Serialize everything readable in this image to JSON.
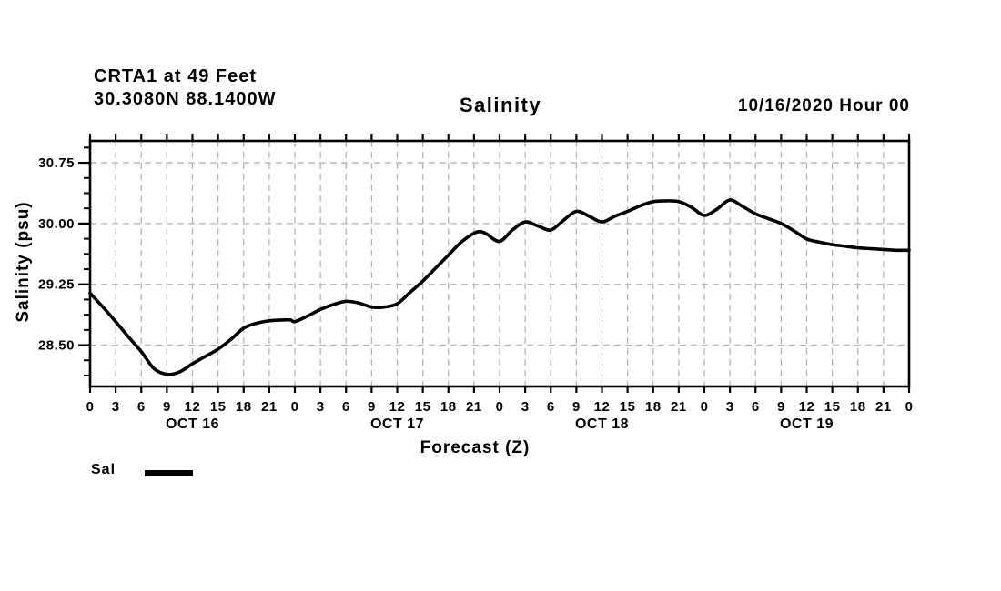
{
  "header": {
    "station_line": "CRTA1 at 49 Feet",
    "coords_line": "30.3080N 88.1400W",
    "title": "Salinity",
    "datetime": "10/16/2020 Hour 00"
  },
  "legend": {
    "label": "Sal"
  },
  "colors": {
    "text": "#000000",
    "axis": "#000000",
    "grid": "#b4b4b4",
    "curve": "#000000",
    "background": "#ffffff"
  },
  "chart_data": {
    "type": "line",
    "title": "Salinity",
    "xlabel": "Forecast (Z)",
    "ylabel": "Salinity (psu)",
    "x_unit": "hours from 10/16/2020 00Z",
    "xlim": [
      0,
      96
    ],
    "ylim": [
      27.99,
      31.02
    ],
    "grid": true,
    "legend_position": "bottom-left",
    "x_tick_step_hours": 3,
    "x_tick_labels": [
      "0",
      "3",
      "6",
      "9",
      "12",
      "15",
      "18",
      "21",
      "0",
      "3",
      "6",
      "9",
      "12",
      "15",
      "18",
      "21",
      "0",
      "3",
      "6",
      "9",
      "12",
      "15",
      "18",
      "21",
      "0",
      "3",
      "6",
      "9",
      "12",
      "15",
      "18",
      "21",
      "0"
    ],
    "day_labels": [
      {
        "label": "OCT 16",
        "hour": 12
      },
      {
        "label": "OCT 17",
        "hour": 36
      },
      {
        "label": "OCT 18",
        "hour": 60
      },
      {
        "label": "OCT 19",
        "hour": 84
      }
    ],
    "y_major_ticks": [
      28.5,
      29.25,
      30.0,
      30.75
    ],
    "y_tick_labels": [
      "28.50",
      "29.25",
      "30.00",
      "30.75"
    ],
    "y_minor_step": 0.1875,
    "series": [
      {
        "name": "Sal",
        "color": "#000000",
        "points": [
          [
            0,
            29.14
          ],
          [
            1.5,
            28.97
          ],
          [
            3,
            28.79
          ],
          [
            4.5,
            28.6
          ],
          [
            6,
            28.42
          ],
          [
            7.5,
            28.21
          ],
          [
            9,
            28.14
          ],
          [
            10.5,
            28.17
          ],
          [
            12,
            28.27
          ],
          [
            13.5,
            28.36
          ],
          [
            15,
            28.45
          ],
          [
            16.5,
            28.57
          ],
          [
            18,
            28.71
          ],
          [
            19.5,
            28.77
          ],
          [
            21,
            28.8
          ],
          [
            22.5,
            28.81
          ],
          [
            23.5,
            28.81
          ],
          [
            24,
            28.79
          ],
          [
            25.5,
            28.86
          ],
          [
            27,
            28.94
          ],
          [
            28.5,
            29.0
          ],
          [
            30,
            29.04
          ],
          [
            31.5,
            29.02
          ],
          [
            33,
            28.97
          ],
          [
            34.5,
            28.97
          ],
          [
            36,
            29.01
          ],
          [
            37.5,
            29.15
          ],
          [
            39,
            29.29
          ],
          [
            40.5,
            29.45
          ],
          [
            42,
            29.61
          ],
          [
            43.5,
            29.77
          ],
          [
            45,
            29.88
          ],
          [
            45.8,
            29.9
          ],
          [
            46.5,
            29.87
          ],
          [
            48,
            29.78
          ],
          [
            49.5,
            29.92
          ],
          [
            51,
            30.02
          ],
          [
            52.5,
            29.97
          ],
          [
            54,
            29.92
          ],
          [
            55.5,
            30.04
          ],
          [
            57,
            30.15
          ],
          [
            58.5,
            30.09
          ],
          [
            60,
            30.02
          ],
          [
            61.5,
            30.09
          ],
          [
            63,
            30.15
          ],
          [
            64.5,
            30.22
          ],
          [
            66,
            30.27
          ],
          [
            67.5,
            30.28
          ],
          [
            69,
            30.27
          ],
          [
            70.5,
            30.2
          ],
          [
            72,
            30.1
          ],
          [
            73.5,
            30.18
          ],
          [
            75,
            30.29
          ],
          [
            76.5,
            30.21
          ],
          [
            78,
            30.12
          ],
          [
            79.5,
            30.06
          ],
          [
            81,
            30.0
          ],
          [
            82.5,
            29.91
          ],
          [
            84,
            29.81
          ],
          [
            85.5,
            29.77
          ],
          [
            87,
            29.74
          ],
          [
            88.5,
            29.72
          ],
          [
            90,
            29.7
          ],
          [
            91.5,
            29.69
          ],
          [
            93,
            29.68
          ],
          [
            94.5,
            29.67
          ],
          [
            96,
            29.67
          ]
        ]
      }
    ]
  }
}
